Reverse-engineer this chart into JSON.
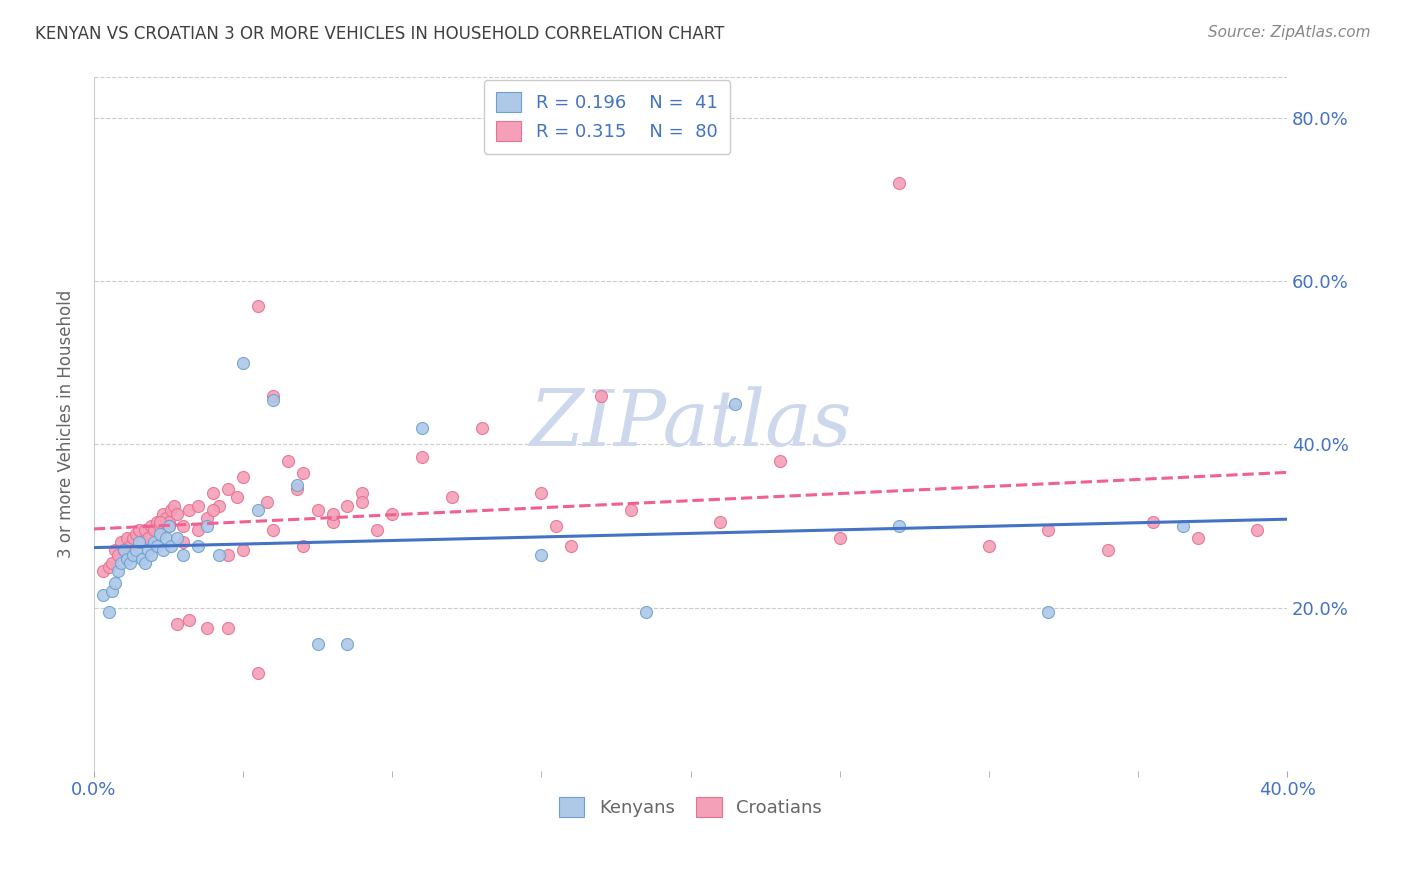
{
  "title": "KENYAN VS CROATIAN 3 OR MORE VEHICLES IN HOUSEHOLD CORRELATION CHART",
  "source": "Source: ZipAtlas.com",
  "ylabel": "3 or more Vehicles in Household",
  "xlim": [
    0.0,
    0.4
  ],
  "ylim": [
    0.0,
    0.85
  ],
  "xtick_vals": [
    0.0,
    0.4
  ],
  "xtick_labels": [
    "0.0%",
    "40.0%"
  ],
  "ytick_vals": [
    0.2,
    0.4,
    0.6,
    0.8
  ],
  "ytick_labels_right": [
    "20.0%",
    "40.0%",
    "60.0%",
    "80.0%"
  ],
  "watermark": "ZIPatlas",
  "legend_r1": "R = 0.196",
  "legend_n1": "N =  41",
  "legend_r2": "R = 0.315",
  "legend_n2": "N =  80",
  "blue_fill": "#AEC8E8",
  "pink_fill": "#F4A0B8",
  "blue_edge": "#6CA0D0",
  "pink_edge": "#E87090",
  "blue_line": "#4472C4",
  "pink_line": "#F06090",
  "axis_color": "#4472C4",
  "title_color": "#404040",
  "source_color": "#888888",
  "watermark_color": "#CDD8EC",
  "grid_color": "#CCCCCC",
  "ylabel_color": "#666666",
  "legend_label_color": "#4472C4",
  "bottom_legend_color": "#666666",
  "blue_x": [
    0.003,
    0.005,
    0.006,
    0.007,
    0.008,
    0.009,
    0.01,
    0.011,
    0.012,
    0.013,
    0.014,
    0.015,
    0.016,
    0.017,
    0.018,
    0.019,
    0.02,
    0.021,
    0.022,
    0.023,
    0.024,
    0.025,
    0.026,
    0.028,
    0.03,
    0.035,
    0.038,
    0.042,
    0.05,
    0.055,
    0.06,
    0.068,
    0.075,
    0.085,
    0.11,
    0.15,
    0.185,
    0.215,
    0.27,
    0.32,
    0.365
  ],
  "blue_y": [
    0.215,
    0.195,
    0.22,
    0.23,
    0.245,
    0.255,
    0.27,
    0.26,
    0.255,
    0.265,
    0.27,
    0.28,
    0.26,
    0.255,
    0.27,
    0.265,
    0.28,
    0.275,
    0.29,
    0.27,
    0.285,
    0.3,
    0.275,
    0.285,
    0.265,
    0.275,
    0.3,
    0.265,
    0.5,
    0.32,
    0.455,
    0.35,
    0.155,
    0.155,
    0.42,
    0.265,
    0.195,
    0.45,
    0.3,
    0.195,
    0.3
  ],
  "pink_x": [
    0.003,
    0.005,
    0.006,
    0.007,
    0.008,
    0.009,
    0.01,
    0.011,
    0.012,
    0.013,
    0.014,
    0.015,
    0.016,
    0.017,
    0.018,
    0.019,
    0.02,
    0.021,
    0.022,
    0.023,
    0.024,
    0.025,
    0.026,
    0.027,
    0.028,
    0.03,
    0.032,
    0.035,
    0.038,
    0.04,
    0.042,
    0.045,
    0.048,
    0.05,
    0.055,
    0.058,
    0.06,
    0.065,
    0.068,
    0.07,
    0.075,
    0.08,
    0.085,
    0.09,
    0.095,
    0.1,
    0.11,
    0.12,
    0.13,
    0.15,
    0.155,
    0.16,
    0.17,
    0.18,
    0.21,
    0.23,
    0.25,
    0.27,
    0.3,
    0.32,
    0.34,
    0.355,
    0.37,
    0.39,
    0.025,
    0.03,
    0.035,
    0.04,
    0.045,
    0.05,
    0.06,
    0.07,
    0.08,
    0.09,
    0.022,
    0.028,
    0.032,
    0.038,
    0.045,
    0.055
  ],
  "pink_y": [
    0.245,
    0.25,
    0.255,
    0.27,
    0.265,
    0.28,
    0.27,
    0.285,
    0.275,
    0.285,
    0.29,
    0.295,
    0.28,
    0.295,
    0.285,
    0.3,
    0.295,
    0.305,
    0.3,
    0.315,
    0.31,
    0.305,
    0.32,
    0.325,
    0.315,
    0.3,
    0.32,
    0.325,
    0.31,
    0.34,
    0.325,
    0.345,
    0.335,
    0.36,
    0.57,
    0.33,
    0.46,
    0.38,
    0.345,
    0.365,
    0.32,
    0.305,
    0.325,
    0.34,
    0.295,
    0.315,
    0.385,
    0.335,
    0.42,
    0.34,
    0.3,
    0.275,
    0.46,
    0.32,
    0.305,
    0.38,
    0.285,
    0.72,
    0.275,
    0.295,
    0.27,
    0.305,
    0.285,
    0.295,
    0.3,
    0.28,
    0.295,
    0.32,
    0.265,
    0.27,
    0.295,
    0.275,
    0.315,
    0.33,
    0.305,
    0.18,
    0.185,
    0.175,
    0.175,
    0.12
  ]
}
